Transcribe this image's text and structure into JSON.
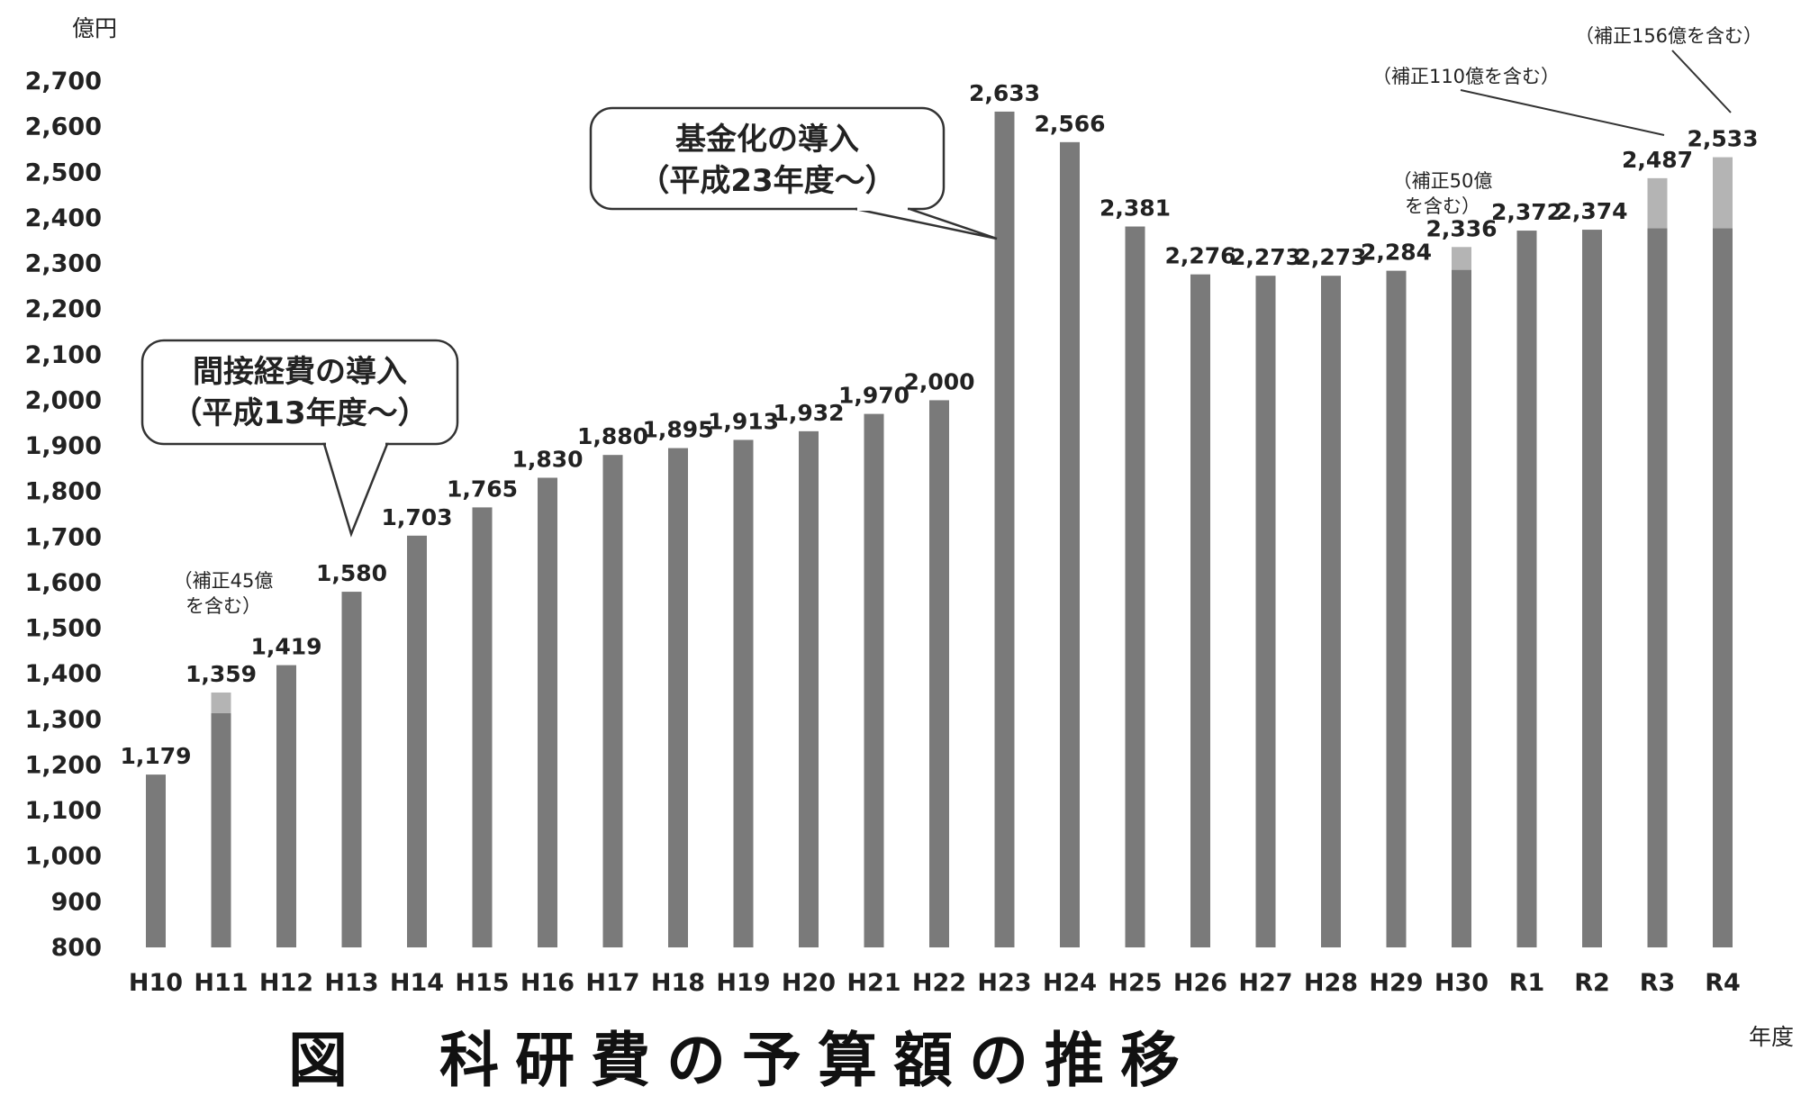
{
  "chart_data": {
    "type": "bar",
    "ylabel": "億円",
    "xlabel": "年度",
    "ylim": [
      800,
      2700
    ],
    "yticks": [
      800,
      900,
      1000,
      1100,
      1200,
      1300,
      1400,
      1500,
      1600,
      1700,
      1800,
      1900,
      2000,
      2100,
      2200,
      2300,
      2400,
      2500,
      2600,
      2700
    ],
    "ytick_labels": [
      "800",
      "900",
      "1,000",
      "1,100",
      "1,200",
      "1,300",
      "1,400",
      "1,500",
      "1,600",
      "1,700",
      "1,800",
      "1,900",
      "2,000",
      "2,100",
      "2,200",
      "2,300",
      "2,400",
      "2,500",
      "2,600",
      "2,700"
    ],
    "categories": [
      "H10",
      "H11",
      "H12",
      "H13",
      "H14",
      "H15",
      "H16",
      "H17",
      "H18",
      "H19",
      "H20",
      "H21",
      "H22",
      "H23",
      "H24",
      "H25",
      "H26",
      "H27",
      "H28",
      "H29",
      "H30",
      "R1",
      "R2",
      "R3",
      "R4"
    ],
    "values": [
      1179,
      1359,
      1419,
      1580,
      1703,
      1765,
      1830,
      1880,
      1895,
      1913,
      1932,
      1970,
      2000,
      2633,
      2566,
      2381,
      2276,
      2273,
      2273,
      2284,
      2336,
      2372,
      2374,
      2487,
      2533
    ],
    "value_labels": [
      "1,179",
      "1,359",
      "1,419",
      "1,580",
      "1,703",
      "1,765",
      "1,830",
      "1,880",
      "1,895",
      "1,913",
      "1,932",
      "1,970",
      "2,000",
      "2,633",
      "2,566",
      "2,381",
      "2,276",
      "2,273",
      "2,273",
      "2,284",
      "2,336",
      "2,372",
      "2,374",
      "2,487",
      "2,533"
    ],
    "supplementary": [
      {
        "category": "H11",
        "amount": 45,
        "note_lines": [
          "（補正45億",
          "を含む）"
        ]
      },
      {
        "category": "H30",
        "amount": 50,
        "note_lines": [
          "（補正50億",
          "を含む）"
        ]
      },
      {
        "category": "R3",
        "amount": 110,
        "note_lines": [
          "（補正110億を含む）"
        ]
      },
      {
        "category": "R4",
        "amount": 156,
        "note_lines": [
          "（補正156億を含む）"
        ]
      }
    ],
    "callouts": [
      {
        "target": "H13",
        "lines": [
          "間接経費の導入",
          "（平成13年度〜）"
        ]
      },
      {
        "target": "H23",
        "lines": [
          "基金化の導入",
          "（平成23年度〜）"
        ]
      }
    ],
    "title": "図　科研費の予算額の推移",
    "grid": false,
    "colors": {
      "bar": "#7a7a7a",
      "supplement": "#b4b4b4",
      "text": "#222222"
    }
  }
}
